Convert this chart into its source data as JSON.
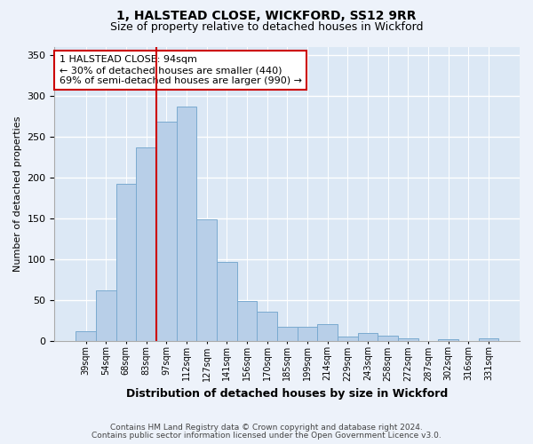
{
  "title1": "1, HALSTEAD CLOSE, WICKFORD, SS12 9RR",
  "title2": "Size of property relative to detached houses in Wickford",
  "xlabel": "Distribution of detached houses by size in Wickford",
  "ylabel": "Number of detached properties",
  "footnote1": "Contains HM Land Registry data © Crown copyright and database right 2024.",
  "footnote2": "Contains public sector information licensed under the Open Government Licence v3.0.",
  "bins_labels": [
    "39sqm",
    "54sqm",
    "68sqm",
    "83sqm",
    "97sqm",
    "112sqm",
    "127sqm",
    "141sqm",
    "156sqm",
    "170sqm",
    "185sqm",
    "199sqm",
    "214sqm",
    "229sqm",
    "243sqm",
    "258sqm",
    "272sqm",
    "287sqm",
    "302sqm",
    "316sqm",
    "331sqm"
  ],
  "heights": [
    11,
    62,
    192,
    237,
    268,
    287,
    148,
    96,
    48,
    35,
    17,
    17,
    20,
    5,
    9,
    6,
    3,
    0,
    2,
    0,
    3
  ],
  "bar_color": "#b8cfe8",
  "bar_edge_color": "#7aaad0",
  "plot_bg_color": "#dce8f5",
  "fig_bg_color": "#edf2fa",
  "grid_color": "#ffffff",
  "red_line_x": 3.5,
  "annotation_text": "1 HALSTEAD CLOSE: 94sqm\n← 30% of detached houses are smaller (440)\n69% of semi-detached houses are larger (990) →",
  "ylim": [
    0,
    360
  ],
  "yticks": [
    0,
    50,
    100,
    150,
    200,
    250,
    300,
    350
  ]
}
